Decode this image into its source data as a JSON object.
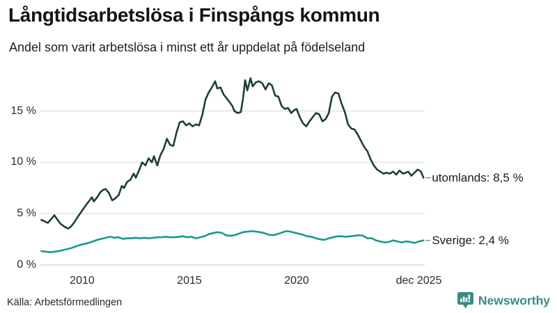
{
  "header": {
    "title": "Långtidsarbetslösa i Finspångs kommun",
    "subtitle": "Andel som varit arbetslösa i minst ett år uppdelat på födelseland"
  },
  "footer": {
    "source": "Källa: Arbetsförmedlingen",
    "brand_name": "Newsworthy",
    "brand_color": "#3a8b85",
    "brand_icon": "bar-chart-speech-bubble-icon"
  },
  "chart_data": {
    "type": "line",
    "title": "Långtidsarbetslösa i Finspångs kommun",
    "subtitle": "Andel som varit arbetslösa i minst ett år uppdelat på födelseland",
    "unit": "%",
    "grid": "horizontal",
    "legend_position": "line-end-labels",
    "x_range": [
      2008.1,
      2025.92
    ],
    "y_range": [
      0,
      18.5
    ],
    "x_axis": {
      "ticks": [
        {
          "label": "2010",
          "year": 2010
        },
        {
          "label": "2015",
          "year": 2015
        },
        {
          "label": "2020",
          "year": 2020
        },
        {
          "label": "dec 2025",
          "year": 2025.7
        }
      ]
    },
    "y_axis": {
      "ticks": [
        {
          "value": 0,
          "label": "0 %"
        },
        {
          "value": 5,
          "label": "5 %"
        },
        {
          "value": 10,
          "label": "10 %"
        },
        {
          "value": 15,
          "label": "15 %"
        }
      ]
    },
    "series": [
      {
        "name": "utomlands",
        "end_label": "utomlands: 8,5 %",
        "final_value": "8,5 %",
        "color": "#1c3f35",
        "points": [
          [
            2008.1,
            4.4
          ],
          [
            2008.25,
            4.25
          ],
          [
            2008.4,
            4.1
          ],
          [
            2008.55,
            4.45
          ],
          [
            2008.7,
            4.85
          ],
          [
            2008.85,
            4.4
          ],
          [
            2009.0,
            4.0
          ],
          [
            2009.2,
            3.7
          ],
          [
            2009.35,
            3.55
          ],
          [
            2009.5,
            3.8
          ],
          [
            2009.65,
            4.2
          ],
          [
            2009.8,
            4.7
          ],
          [
            2010.0,
            5.3
          ],
          [
            2010.1,
            5.6
          ],
          [
            2010.2,
            5.9
          ],
          [
            2010.35,
            6.3
          ],
          [
            2010.45,
            6.6
          ],
          [
            2010.55,
            6.2
          ],
          [
            2010.7,
            6.6
          ],
          [
            2010.85,
            7.1
          ],
          [
            2011.0,
            7.35
          ],
          [
            2011.1,
            7.4
          ],
          [
            2011.25,
            7.0
          ],
          [
            2011.4,
            6.3
          ],
          [
            2011.55,
            6.5
          ],
          [
            2011.7,
            6.8
          ],
          [
            2011.85,
            7.7
          ],
          [
            2011.95,
            7.5
          ],
          [
            2012.1,
            8.1
          ],
          [
            2012.25,
            8.3
          ],
          [
            2012.4,
            8.9
          ],
          [
            2012.5,
            8.5
          ],
          [
            2012.65,
            9.2
          ],
          [
            2012.8,
            10.0
          ],
          [
            2012.95,
            9.7
          ],
          [
            2013.1,
            10.4
          ],
          [
            2013.25,
            10.0
          ],
          [
            2013.35,
            10.6
          ],
          [
            2013.5,
            9.7
          ],
          [
            2013.65,
            10.7
          ],
          [
            2013.8,
            11.3
          ],
          [
            2013.95,
            12.3
          ],
          [
            2014.1,
            11.7
          ],
          [
            2014.25,
            11.6
          ],
          [
            2014.4,
            12.9
          ],
          [
            2014.55,
            13.9
          ],
          [
            2014.7,
            14.0
          ],
          [
            2014.85,
            13.6
          ],
          [
            2015.0,
            13.8
          ],
          [
            2015.15,
            13.5
          ],
          [
            2015.3,
            13.7
          ],
          [
            2015.45,
            13.6
          ],
          [
            2015.6,
            14.6
          ],
          [
            2015.75,
            16.1
          ],
          [
            2015.9,
            16.8
          ],
          [
            2016.05,
            17.3
          ],
          [
            2016.2,
            17.9
          ],
          [
            2016.3,
            17.2
          ],
          [
            2016.45,
            17.3
          ],
          [
            2016.6,
            16.6
          ],
          [
            2016.75,
            16.2
          ],
          [
            2016.9,
            15.8
          ],
          [
            2017.0,
            15.5
          ],
          [
            2017.1,
            15.0
          ],
          [
            2017.25,
            14.8
          ],
          [
            2017.4,
            14.9
          ],
          [
            2017.5,
            16.2
          ],
          [
            2017.6,
            18.0
          ],
          [
            2017.7,
            17.0
          ],
          [
            2017.85,
            18.2
          ],
          [
            2017.95,
            17.4
          ],
          [
            2018.1,
            17.8
          ],
          [
            2018.25,
            17.9
          ],
          [
            2018.4,
            17.7
          ],
          [
            2018.55,
            17.1
          ],
          [
            2018.7,
            17.7
          ],
          [
            2018.85,
            17.5
          ],
          [
            2019.0,
            16.5
          ],
          [
            2019.15,
            16.4
          ],
          [
            2019.3,
            15.5
          ],
          [
            2019.45,
            15.2
          ],
          [
            2019.6,
            15.3
          ],
          [
            2019.75,
            14.8
          ],
          [
            2019.9,
            15.1
          ],
          [
            2020.0,
            15.2
          ],
          [
            2020.15,
            14.4
          ],
          [
            2020.3,
            13.8
          ],
          [
            2020.45,
            13.5
          ],
          [
            2020.6,
            14.0
          ],
          [
            2020.75,
            14.4
          ],
          [
            2020.9,
            14.8
          ],
          [
            2021.05,
            14.7
          ],
          [
            2021.2,
            14.0
          ],
          [
            2021.35,
            14.2
          ],
          [
            2021.5,
            14.8
          ],
          [
            2021.65,
            16.4
          ],
          [
            2021.8,
            16.8
          ],
          [
            2021.95,
            16.7
          ],
          [
            2022.1,
            15.7
          ],
          [
            2022.25,
            14.9
          ],
          [
            2022.4,
            13.7
          ],
          [
            2022.55,
            13.3
          ],
          [
            2022.7,
            13.2
          ],
          [
            2022.85,
            12.7
          ],
          [
            2023.0,
            12.1
          ],
          [
            2023.15,
            11.5
          ],
          [
            2023.3,
            11.1
          ],
          [
            2023.45,
            10.3
          ],
          [
            2023.6,
            9.7
          ],
          [
            2023.75,
            9.3
          ],
          [
            2023.9,
            9.1
          ],
          [
            2024.05,
            8.9
          ],
          [
            2024.2,
            9.0
          ],
          [
            2024.35,
            8.9
          ],
          [
            2024.5,
            9.1
          ],
          [
            2024.65,
            8.8
          ],
          [
            2024.8,
            9.2
          ],
          [
            2024.95,
            8.9
          ],
          [
            2025.1,
            9.0
          ],
          [
            2025.2,
            9.1
          ],
          [
            2025.35,
            8.7
          ],
          [
            2025.5,
            9.0
          ],
          [
            2025.65,
            9.3
          ],
          [
            2025.8,
            9.1
          ],
          [
            2025.92,
            8.5
          ]
        ]
      },
      {
        "name": "Sverige",
        "end_label": "Sverige: 2,4 %",
        "final_value": "2,4 %",
        "color": "#169b8c",
        "points": [
          [
            2008.1,
            1.35
          ],
          [
            2008.3,
            1.3
          ],
          [
            2008.5,
            1.25
          ],
          [
            2008.7,
            1.3
          ],
          [
            2008.9,
            1.35
          ],
          [
            2009.1,
            1.45
          ],
          [
            2009.3,
            1.55
          ],
          [
            2009.5,
            1.65
          ],
          [
            2009.7,
            1.8
          ],
          [
            2009.9,
            1.95
          ],
          [
            2010.1,
            2.05
          ],
          [
            2010.3,
            2.15
          ],
          [
            2010.5,
            2.3
          ],
          [
            2010.7,
            2.45
          ],
          [
            2010.9,
            2.55
          ],
          [
            2011.1,
            2.65
          ],
          [
            2011.3,
            2.75
          ],
          [
            2011.5,
            2.65
          ],
          [
            2011.7,
            2.7
          ],
          [
            2011.9,
            2.55
          ],
          [
            2012.1,
            2.6
          ],
          [
            2012.3,
            2.6
          ],
          [
            2012.5,
            2.65
          ],
          [
            2012.7,
            2.6
          ],
          [
            2012.9,
            2.65
          ],
          [
            2013.1,
            2.6
          ],
          [
            2013.3,
            2.65
          ],
          [
            2013.5,
            2.7
          ],
          [
            2013.7,
            2.7
          ],
          [
            2013.9,
            2.75
          ],
          [
            2014.1,
            2.7
          ],
          [
            2014.3,
            2.7
          ],
          [
            2014.5,
            2.75
          ],
          [
            2014.7,
            2.8
          ],
          [
            2014.9,
            2.7
          ],
          [
            2015.1,
            2.75
          ],
          [
            2015.3,
            2.6
          ],
          [
            2015.5,
            2.7
          ],
          [
            2015.7,
            2.8
          ],
          [
            2015.9,
            3.0
          ],
          [
            2016.1,
            3.1
          ],
          [
            2016.3,
            3.2
          ],
          [
            2016.5,
            3.15
          ],
          [
            2016.7,
            2.9
          ],
          [
            2016.9,
            2.85
          ],
          [
            2017.1,
            2.9
          ],
          [
            2017.3,
            3.05
          ],
          [
            2017.5,
            3.2
          ],
          [
            2017.7,
            3.25
          ],
          [
            2017.9,
            3.3
          ],
          [
            2018.1,
            3.25
          ],
          [
            2018.3,
            3.2
          ],
          [
            2018.5,
            3.1
          ],
          [
            2018.7,
            2.95
          ],
          [
            2018.9,
            2.9
          ],
          [
            2019.1,
            3.0
          ],
          [
            2019.3,
            3.15
          ],
          [
            2019.5,
            3.3
          ],
          [
            2019.7,
            3.25
          ],
          [
            2019.9,
            3.15
          ],
          [
            2020.1,
            3.05
          ],
          [
            2020.3,
            2.95
          ],
          [
            2020.5,
            2.8
          ],
          [
            2020.7,
            2.75
          ],
          [
            2020.9,
            2.6
          ],
          [
            2021.1,
            2.5
          ],
          [
            2021.3,
            2.45
          ],
          [
            2021.5,
            2.6
          ],
          [
            2021.7,
            2.7
          ],
          [
            2021.9,
            2.8
          ],
          [
            2022.1,
            2.8
          ],
          [
            2022.3,
            2.75
          ],
          [
            2022.5,
            2.8
          ],
          [
            2022.7,
            2.85
          ],
          [
            2022.9,
            2.9
          ],
          [
            2023.1,
            2.85
          ],
          [
            2023.3,
            2.6
          ],
          [
            2023.5,
            2.6
          ],
          [
            2023.7,
            2.4
          ],
          [
            2023.9,
            2.3
          ],
          [
            2024.1,
            2.2
          ],
          [
            2024.3,
            2.25
          ],
          [
            2024.5,
            2.4
          ],
          [
            2024.7,
            2.3
          ],
          [
            2024.9,
            2.2
          ],
          [
            2025.1,
            2.3
          ],
          [
            2025.3,
            2.25
          ],
          [
            2025.5,
            2.15
          ],
          [
            2025.7,
            2.3
          ],
          [
            2025.92,
            2.4
          ]
        ]
      }
    ]
  },
  "colors": {
    "gridline": "#e3e3e8",
    "zero_line": "#d7d7dc",
    "connector": "#888888"
  }
}
